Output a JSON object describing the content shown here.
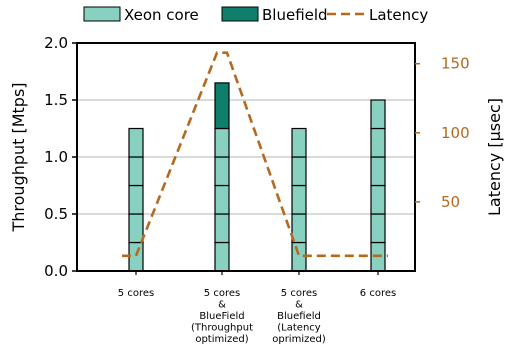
{
  "chart_data": {
    "type": "bar",
    "categories": [
      [
        "5 cores"
      ],
      [
        "5 cores",
        "&",
        "BlueField",
        "(Throughput",
        "optimized)"
      ],
      [
        "5 cores",
        "&",
        "Bluefield",
        "(Latency",
        "oprimized)"
      ],
      [
        "6 cores"
      ]
    ],
    "series": [
      {
        "name": "Xeon core",
        "values": [
          1.25,
          1.25,
          1.25,
          1.5
        ],
        "segment_size": 0.25,
        "color": "#88d0c0"
      },
      {
        "name": "Bluefield",
        "values": [
          0,
          0.4,
          0,
          0
        ],
        "color": "#0e7f6d"
      }
    ],
    "line": {
      "name": "Latency",
      "axis": "right",
      "values": [
        11,
        158,
        11,
        11
      ],
      "color": "#b5691f"
    },
    "xlabel": "",
    "ylabel": "Throughput [Mtps]",
    "ylim": [
      0,
      2.0
    ],
    "yticks": [
      "0.0",
      "0.5",
      "1.0",
      "1.5",
      "2.0"
    ],
    "y2label": "Latency [μsec]",
    "y2lim": [
      0,
      165
    ],
    "y2ticks": [
      "50",
      "100",
      "150"
    ],
    "y2_color": "#b5691f",
    "grid": "horizontal",
    "legend_placement": "top"
  }
}
